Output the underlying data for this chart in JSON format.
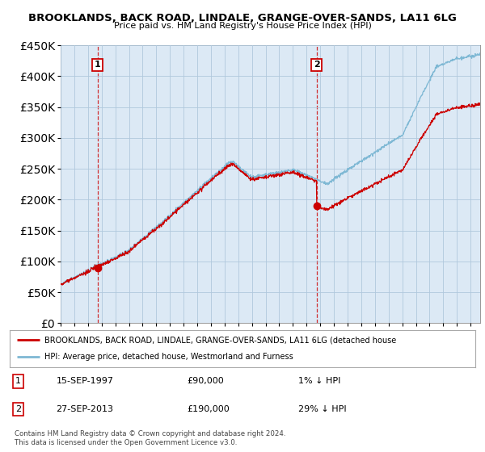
{
  "title": "BROOKLANDS, BACK ROAD, LINDALE, GRANGE-OVER-SANDS, LA11 6LG",
  "subtitle": "Price paid vs. HM Land Registry's House Price Index (HPI)",
  "ylim": [
    0,
    450000
  ],
  "yticks": [
    0,
    50000,
    100000,
    150000,
    200000,
    250000,
    300000,
    350000,
    400000,
    450000
  ],
  "hpi_color": "#7eb8d4",
  "price_color": "#cc0000",
  "sale1_year": 1997.71,
  "sale1_price": 90000,
  "sale2_year": 2013.74,
  "sale2_price": 190000,
  "sale1_date": "15-SEP-1997",
  "sale1_price_str": "£90,000",
  "sale1_note": "1% ↓ HPI",
  "sale2_date": "27-SEP-2013",
  "sale2_price_str": "£190,000",
  "sale2_note": "29% ↓ HPI",
  "legend_label1": "BROOKLANDS, BACK ROAD, LINDALE, GRANGE-OVER-SANDS, LA11 6LG (detached house",
  "legend_label2": "HPI: Average price, detached house, Westmorland and Furness",
  "footer": "Contains HM Land Registry data © Crown copyright and database right 2024.\nThis data is licensed under the Open Government Licence v3.0.",
  "plot_bg": "#dce9f5",
  "fig_bg": "#ffffff",
  "grid_color": "#b0c8dd"
}
